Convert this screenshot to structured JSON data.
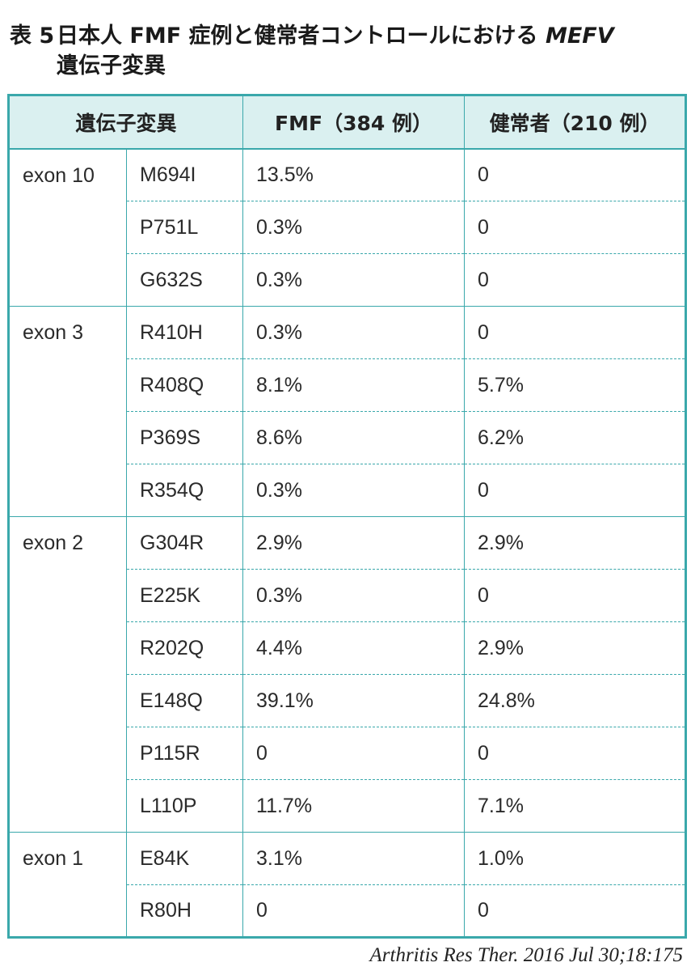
{
  "title": {
    "number": "表 5",
    "line1": "日本人 FMF 症例と健常者コントロールにおける",
    "gene": "MEFV",
    "line2": "遺伝子変異"
  },
  "table": {
    "headers": [
      "遺伝子変異",
      "FMF（384 例）",
      "健常者（210 例）"
    ],
    "groups": [
      {
        "exon": "exon 10",
        "rows": [
          {
            "mutation": "M694I",
            "fmf": "13.5%",
            "healthy": "0"
          },
          {
            "mutation": "P751L",
            "fmf": "0.3%",
            "healthy": "0"
          },
          {
            "mutation": "G632S",
            "fmf": "0.3%",
            "healthy": "0"
          }
        ]
      },
      {
        "exon": "exon 3",
        "rows": [
          {
            "mutation": "R410H",
            "fmf": "0.3%",
            "healthy": "0"
          },
          {
            "mutation": "R408Q",
            "fmf": "8.1%",
            "healthy": "5.7%"
          },
          {
            "mutation": "P369S",
            "fmf": "8.6%",
            "healthy": "6.2%"
          },
          {
            "mutation": "R354Q",
            "fmf": "0.3%",
            "healthy": "0"
          }
        ]
      },
      {
        "exon": "exon 2",
        "rows": [
          {
            "mutation": "G304R",
            "fmf": "2.9%",
            "healthy": "2.9%"
          },
          {
            "mutation": "E225K",
            "fmf": "0.3%",
            "healthy": "0"
          },
          {
            "mutation": "R202Q",
            "fmf": "4.4%",
            "healthy": "2.9%"
          },
          {
            "mutation": "E148Q",
            "fmf": "39.1%",
            "healthy": "24.8%"
          },
          {
            "mutation": "P115R",
            "fmf": "0",
            "healthy": "0"
          },
          {
            "mutation": "L110P",
            "fmf": "11.7%",
            "healthy": "7.1%"
          }
        ]
      },
      {
        "exon": "exon 1",
        "rows": [
          {
            "mutation": "E84K",
            "fmf": "3.1%",
            "healthy": "1.0%"
          },
          {
            "mutation": "R80H",
            "fmf": "0",
            "healthy": "0"
          }
        ]
      }
    ]
  },
  "source": "Arthritis Res Ther. 2016 Jul 30;18:175",
  "colors": {
    "border": "#3aa8ab",
    "header_bg": "#daf0f0"
  }
}
